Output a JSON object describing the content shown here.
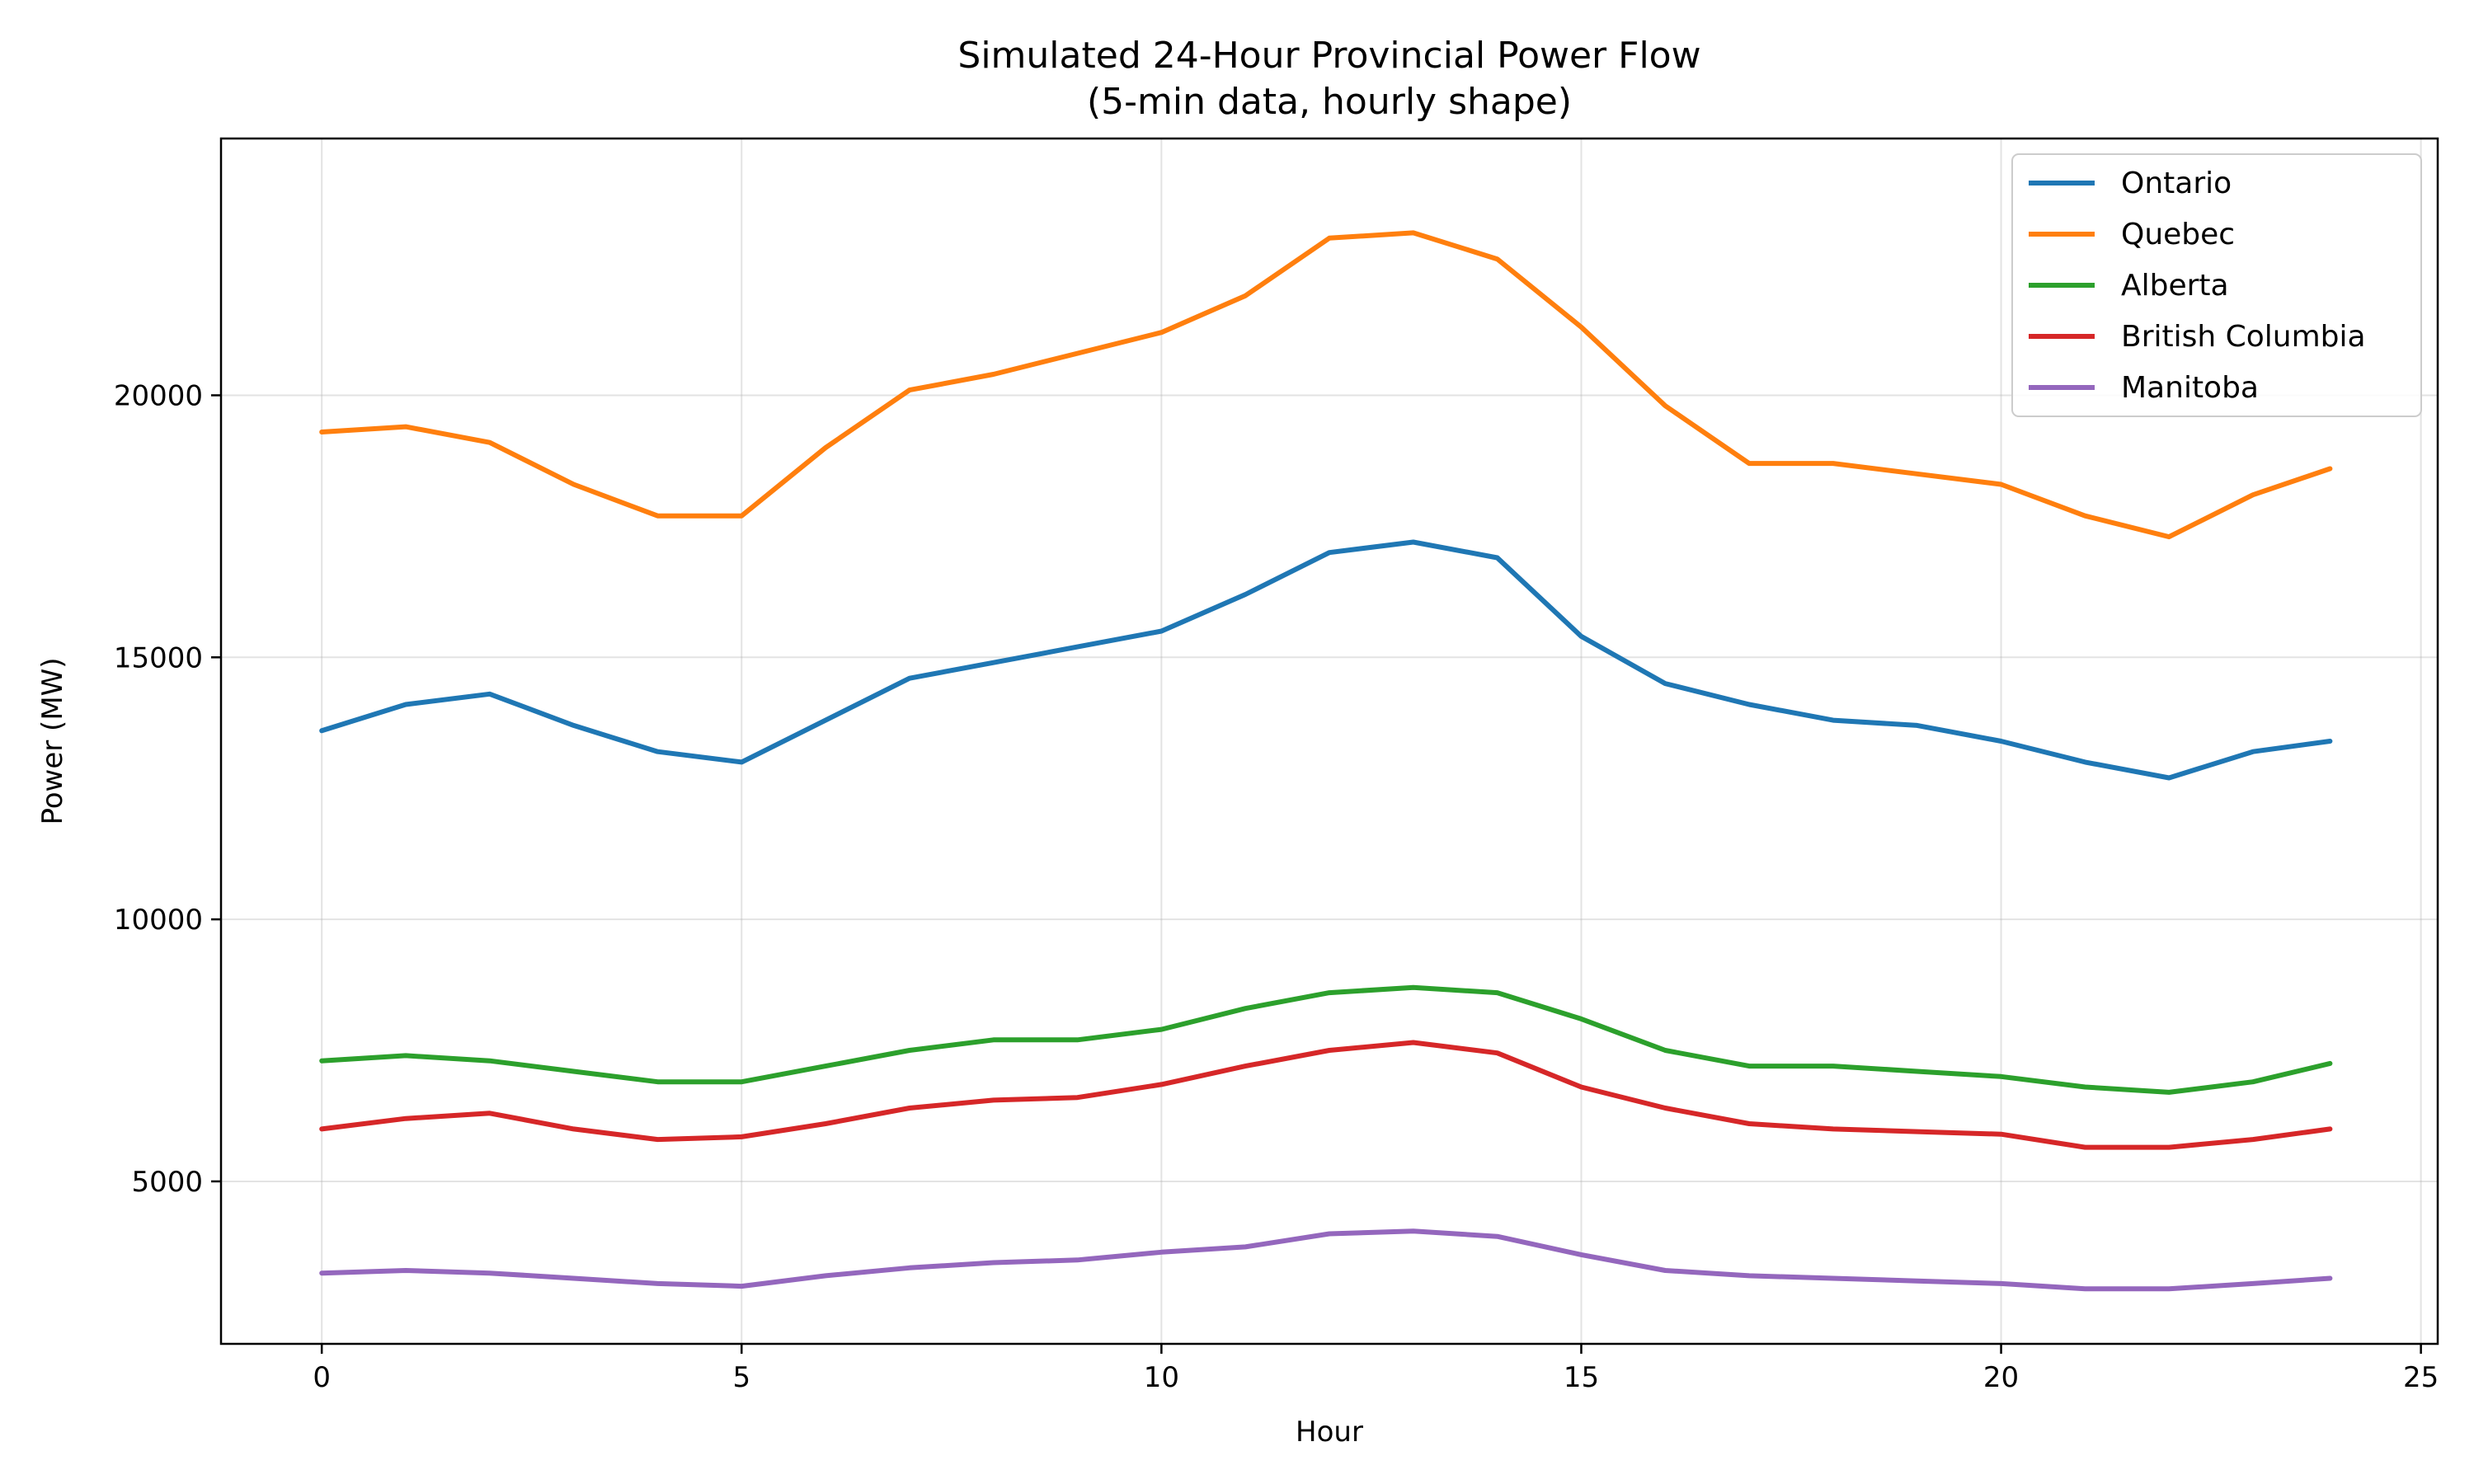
{
  "chart_data": {
    "type": "line",
    "title": "Simulated 24-Hour Provincial Power Flow",
    "subtitle": "(5-min data, hourly shape)",
    "xlabel": "Hour",
    "ylabel": "Power (MW)",
    "xlim": [
      -1.2,
      25.2
    ],
    "ylim": [
      1900,
      24900
    ],
    "xticks": [
      0,
      5,
      10,
      15,
      20,
      25
    ],
    "yticks": [
      5000,
      10000,
      15000,
      20000
    ],
    "grid": true,
    "legend_position": "top-right",
    "x": [
      0,
      1,
      2,
      3,
      4,
      5,
      6,
      7,
      8,
      9,
      10,
      11,
      12,
      13,
      14,
      15,
      16,
      17,
      18,
      19,
      20,
      21,
      22,
      23,
      23.917
    ],
    "series": [
      {
        "name": "Ontario",
        "color": "#1f77b4",
        "values": [
          13600,
          14100,
          14300,
          13700,
          13200,
          13000,
          13800,
          14600,
          14900,
          15200,
          15500,
          16200,
          17000,
          17200,
          16900,
          15400,
          14500,
          14100,
          13800,
          13700,
          13400,
          13000,
          12700,
          13200,
          13400
        ]
      },
      {
        "name": "Quebec",
        "color": "#ff7f0e",
        "values": [
          19300,
          19400,
          19100,
          18300,
          17700,
          17700,
          19000,
          20100,
          20400,
          20800,
          21200,
          21900,
          23000,
          23100,
          22600,
          21300,
          19800,
          18700,
          18700,
          18500,
          18300,
          17700,
          17300,
          18100,
          18600
        ]
      },
      {
        "name": "Alberta",
        "color": "#2ca02c",
        "values": [
          7300,
          7400,
          7300,
          7100,
          6900,
          6900,
          7200,
          7500,
          7700,
          7700,
          7900,
          8300,
          8600,
          8700,
          8600,
          8100,
          7500,
          7200,
          7200,
          7100,
          7000,
          6800,
          6700,
          6900,
          7250
        ]
      },
      {
        "name": "British Columbia",
        "color": "#d62728",
        "values": [
          6000,
          6200,
          6300,
          6000,
          5800,
          5850,
          6100,
          6400,
          6550,
          6600,
          6850,
          7200,
          7500,
          7650,
          7450,
          6800,
          6400,
          6100,
          6000,
          5950,
          5900,
          5650,
          5650,
          5800,
          6000
        ]
      },
      {
        "name": "Manitoba",
        "color": "#9467bd",
        "values": [
          3250,
          3300,
          3250,
          3150,
          3050,
          3000,
          3200,
          3350,
          3450,
          3500,
          3650,
          3750,
          4000,
          4050,
          3950,
          3600,
          3300,
          3200,
          3150,
          3100,
          3050,
          2950,
          2950,
          3050,
          3150
        ]
      }
    ]
  }
}
